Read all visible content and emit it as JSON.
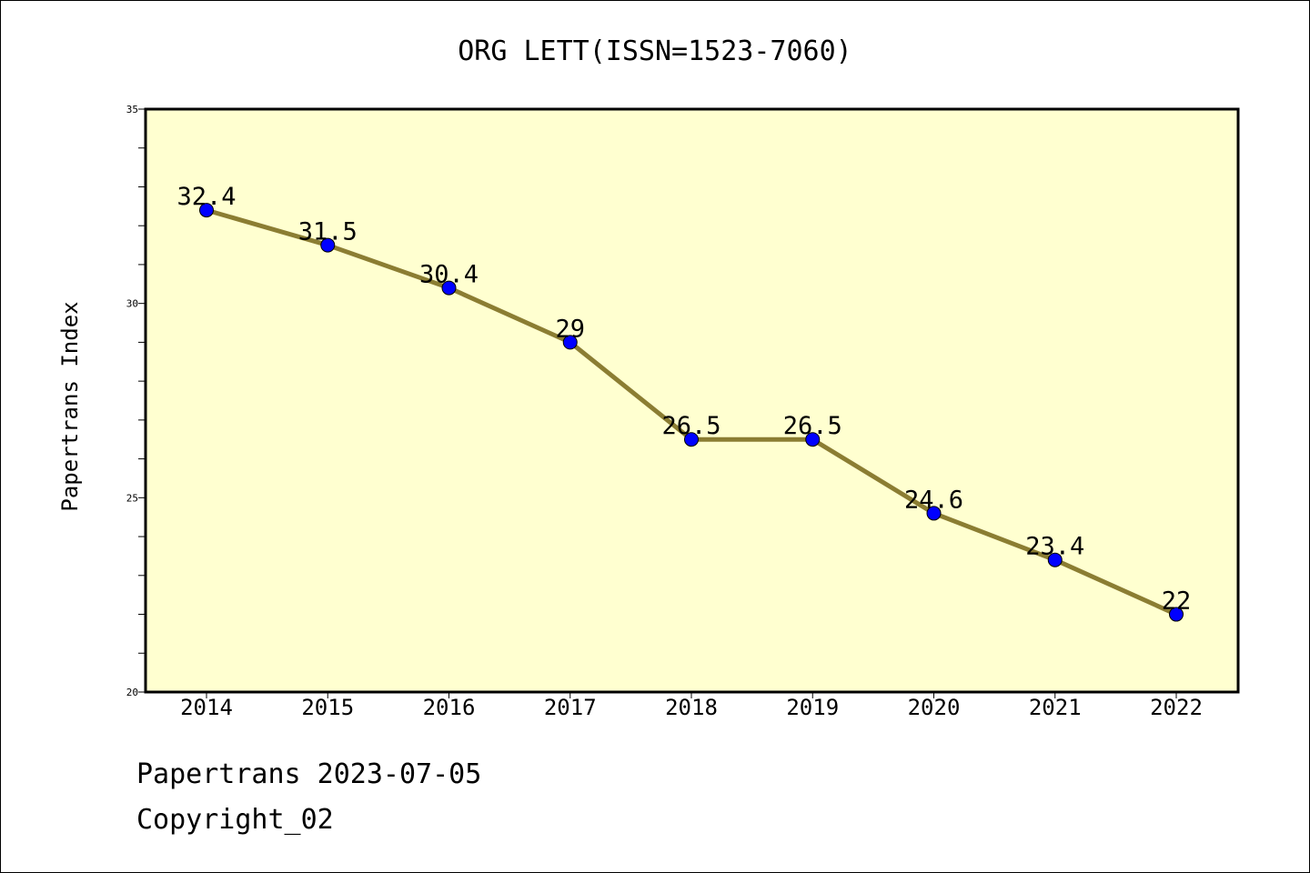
{
  "chart_data": {
    "type": "line",
    "title": "ORG LETT(ISSN=1523-7060)",
    "ylabel": "Papertrans Index",
    "xlabel": "",
    "categories": [
      "2014",
      "2015",
      "2016",
      "2017",
      "2018",
      "2019",
      "2020",
      "2021",
      "2022"
    ],
    "values": [
      32.4,
      31.5,
      30.4,
      29,
      26.5,
      26.5,
      24.6,
      23.4,
      22
    ],
    "data_labels": [
      "32.4",
      "31.5",
      "30.4",
      "29",
      "26.5",
      "26.5",
      "24.6",
      "23.4",
      "22"
    ],
    "ylim": [
      20,
      35
    ],
    "y_ticks": [
      20,
      25,
      30,
      35
    ],
    "y_minor_step": 1,
    "grid": false,
    "colors": {
      "plot_background": "#ffffd0",
      "line": "#8b7d32",
      "marker": "#0000ff",
      "marker_edge": "#000000"
    }
  },
  "footer": {
    "line1": "Papertrans 2023-07-05",
    "line2": "Copyright_02"
  }
}
